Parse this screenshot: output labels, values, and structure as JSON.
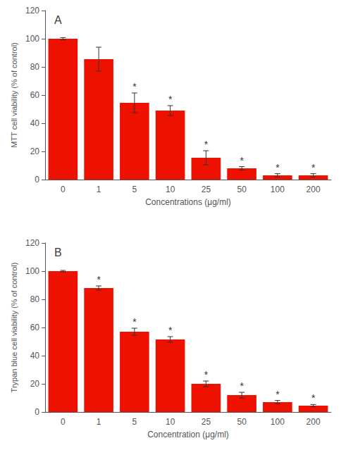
{
  "chart_data": [
    {
      "type": "bar",
      "title": "A",
      "xlabel": "Concentrations (μg/ml)",
      "ylabel": "MTT cell viability (% of control)",
      "categories": [
        "0",
        "1",
        "5",
        "10",
        "25",
        "50",
        "100",
        "200"
      ],
      "values": [
        100,
        85.5,
        54.5,
        49.0,
        15.5,
        8.0,
        3.0,
        3.0
      ],
      "errors": [
        0.8,
        8.5,
        7.0,
        3.5,
        5.0,
        1.2,
        1.2,
        1.2
      ],
      "annotations": [
        {
          "x": "5",
          "text": "*"
        },
        {
          "x": "10",
          "text": "*"
        },
        {
          "x": "25",
          "text": "*"
        },
        {
          "x": "50",
          "text": "*"
        },
        {
          "x": "100",
          "text": "*"
        },
        {
          "x": "200",
          "text": "*"
        }
      ],
      "color": "#ee1100",
      "ylim": [
        0,
        120
      ],
      "yticks": [
        0,
        20,
        40,
        60,
        80,
        100,
        120
      ],
      "grid": false
    },
    {
      "type": "bar",
      "title": "B",
      "xlabel": "Concentration (μg/ml)",
      "ylabel": "Trypan blue cell viability (% of control)",
      "categories": [
        "0",
        "1",
        "5",
        "10",
        "25",
        "50",
        "100",
        "200"
      ],
      "values": [
        100,
        88.0,
        57.0,
        51.5,
        20.0,
        12.0,
        7.0,
        4.5
      ],
      "errors": [
        0.5,
        1.5,
        2.5,
        2.0,
        2.0,
        2.0,
        1.2,
        0.8
      ],
      "annotations": [
        {
          "x": "1",
          "text": "*"
        },
        {
          "x": "5",
          "text": "*"
        },
        {
          "x": "10",
          "text": "*"
        },
        {
          "x": "25",
          "text": "*"
        },
        {
          "x": "50",
          "text": "*"
        },
        {
          "x": "100",
          "text": "*"
        },
        {
          "x": "200",
          "text": "*"
        }
      ],
      "color": "#ee1100",
      "ylim": [
        0,
        120
      ],
      "yticks": [
        0,
        20,
        40,
        60,
        80,
        100,
        120
      ],
      "grid": false
    }
  ]
}
